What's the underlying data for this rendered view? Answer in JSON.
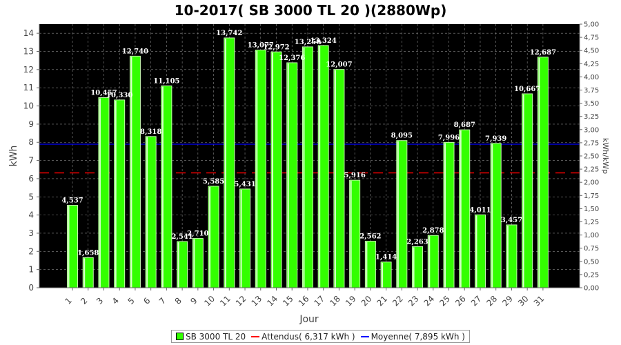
{
  "chart_data": {
    "type": "bar",
    "title": "10-2017( SB 3000 TL 20 )(2880Wp)",
    "xlabel": "Jour",
    "ylabel": "kWh",
    "y2label": "kWh/kWp",
    "ylim": [
      0,
      14.5
    ],
    "y2lim": [
      0,
      5.0
    ],
    "yticks": [
      "0",
      "1",
      "2",
      "3",
      "4",
      "5",
      "6",
      "7",
      "8",
      "9",
      "10",
      "11",
      "12",
      "13",
      "14"
    ],
    "y2ticks": [
      "0,00",
      "0,25",
      "0,50",
      "0,75",
      "1,00",
      "1,25",
      "1,50",
      "1,75",
      "2,00",
      "2,25",
      "2,50",
      "2,75",
      "3,00",
      "3,25",
      "3,50",
      "3,75",
      "4,00",
      "4,25",
      "4,50",
      "4,75",
      "5,00"
    ],
    "categories": [
      "1",
      "2",
      "3",
      "4",
      "5",
      "6",
      "7",
      "8",
      "9",
      "10",
      "11",
      "12",
      "13",
      "14",
      "15",
      "16",
      "17",
      "18",
      "19",
      "20",
      "21",
      "22",
      "23",
      "24",
      "25",
      "26",
      "27",
      "28",
      "29",
      "30",
      "31"
    ],
    "series": [
      {
        "name": "SB 3000 TL 20",
        "color": "#33ff00",
        "values": [
          4.537,
          1.658,
          10.457,
          10.33,
          12.74,
          8.318,
          11.105,
          2.541,
          2.71,
          5.585,
          13.742,
          5.431,
          13.077,
          12.972,
          12.376,
          13.25,
          13.324,
          12.007,
          5.916,
          2.562,
          1.414,
          8.095,
          2.263,
          2.878,
          7.996,
          8.687,
          4.011,
          7.939,
          3.457,
          10.667,
          12.687
        ],
        "labels": [
          "4,537",
          "1,658",
          "10,457",
          "10,330",
          "12,740",
          "8,318",
          "11,105",
          "2,541",
          "2,710",
          "5,585",
          "13,742",
          "5,431",
          "13,077",
          "12,972",
          "12,376",
          "13,250",
          "13,324",
          "12,007",
          "5,916",
          "2,562",
          "1,414",
          "8,095",
          "2,263",
          "2,878",
          "7,996",
          "8,687",
          "4,011",
          "7,939",
          "3,457",
          "10,667",
          "12,687"
        ]
      }
    ],
    "reference_lines": [
      {
        "name": "Attendus( 6,317 kWh )",
        "value": 6.317,
        "color": "#ff0000",
        "style": "dashed"
      },
      {
        "name": "Moyenne( 7,895 kWh )",
        "value": 7.895,
        "color": "#0000ff",
        "style": "solid"
      }
    ],
    "grid": true,
    "legend_position": "bottom",
    "background": "#000000"
  }
}
